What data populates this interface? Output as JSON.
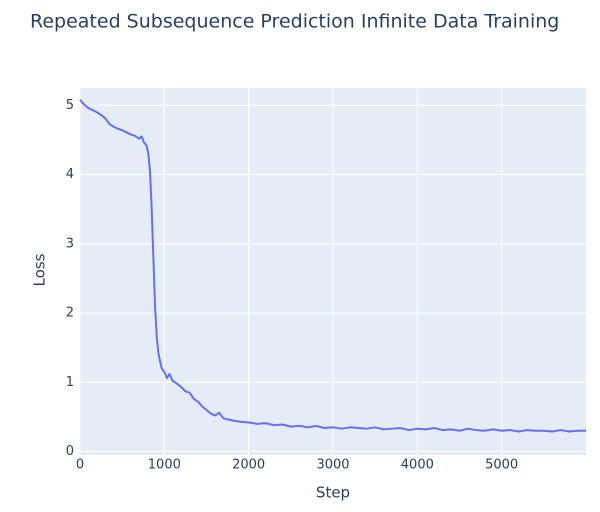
{
  "chart_data": {
    "type": "line",
    "title": "Repeated Subsequence Prediction Infinite Data Training",
    "x_label": "Step",
    "y_label": "Loss",
    "x": [
      0,
      50,
      100,
      150,
      200,
      250,
      300,
      350,
      400,
      450,
      500,
      550,
      600,
      650,
      700,
      730,
      760,
      790,
      810,
      830,
      850,
      870,
      890,
      910,
      930,
      950,
      970,
      1000,
      1030,
      1060,
      1100,
      1150,
      1200,
      1250,
      1300,
      1350,
      1400,
      1450,
      1500,
      1550,
      1600,
      1650,
      1700,
      1800,
      1900,
      2000,
      2100,
      2200,
      2300,
      2400,
      2500,
      2600,
      2700,
      2800,
      2900,
      3000,
      3100,
      3200,
      3300,
      3400,
      3500,
      3600,
      3700,
      3800,
      3900,
      4000,
      4100,
      4200,
      4300,
      4400,
      4500,
      4600,
      4700,
      4800,
      4900,
      5000,
      5100,
      5200,
      5300,
      5400,
      5500,
      5600,
      5700,
      5800,
      5900,
      6000
    ],
    "series": [
      {
        "name": "Loss",
        "color": "#636efa",
        "values": [
          5.08,
          5.01,
          4.96,
          4.93,
          4.9,
          4.86,
          4.81,
          4.73,
          4.69,
          4.66,
          4.64,
          4.61,
          4.58,
          4.56,
          4.52,
          4.55,
          4.46,
          4.42,
          4.3,
          4.05,
          3.5,
          2.8,
          2.1,
          1.65,
          1.42,
          1.3,
          1.2,
          1.15,
          1.06,
          1.12,
          1.02,
          0.98,
          0.93,
          0.87,
          0.85,
          0.76,
          0.72,
          0.65,
          0.6,
          0.55,
          0.52,
          0.56,
          0.48,
          0.45,
          0.43,
          0.42,
          0.4,
          0.41,
          0.38,
          0.39,
          0.36,
          0.37,
          0.35,
          0.37,
          0.34,
          0.35,
          0.33,
          0.35,
          0.34,
          0.33,
          0.35,
          0.32,
          0.33,
          0.34,
          0.31,
          0.33,
          0.32,
          0.34,
          0.31,
          0.32,
          0.3,
          0.33,
          0.31,
          0.3,
          0.32,
          0.3,
          0.31,
          0.29,
          0.31,
          0.3,
          0.3,
          0.29,
          0.31,
          0.29,
          0.3,
          0.3
        ]
      }
    ],
    "xlim": [
      0,
      6000
    ],
    "ylim": [
      -0.05,
      5.25
    ],
    "xticks": [
      0,
      1000,
      2000,
      3000,
      4000,
      5000
    ],
    "yticks": [
      0,
      1,
      2,
      3,
      4,
      5
    ],
    "grid": true
  }
}
